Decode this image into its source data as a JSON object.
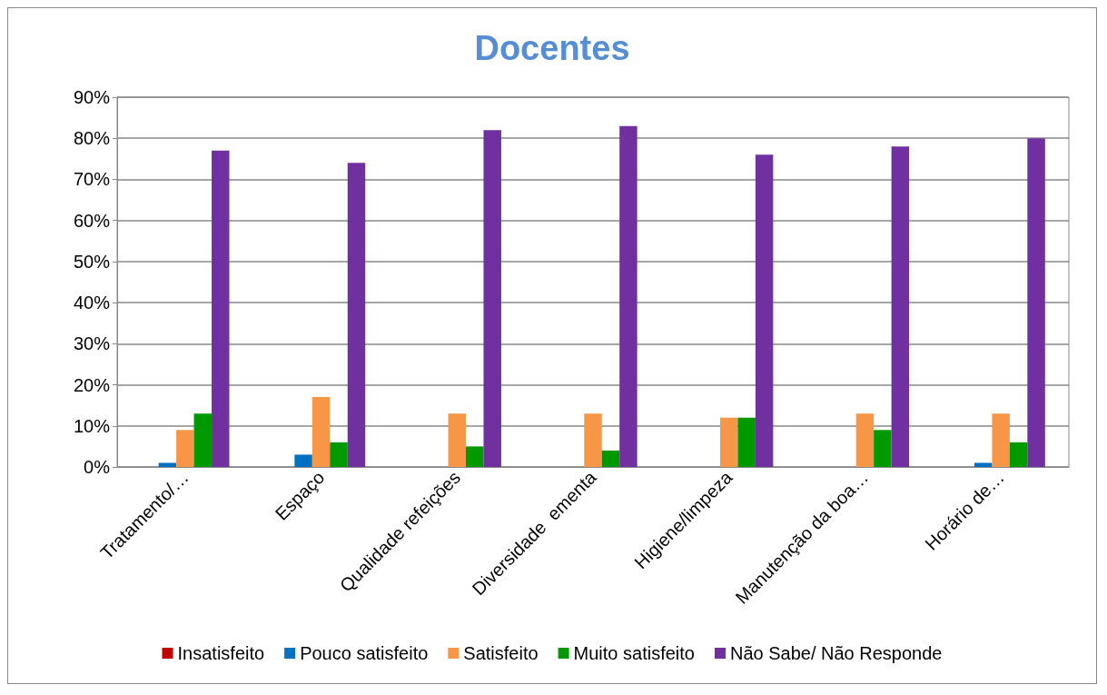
{
  "chart_data": {
    "type": "bar",
    "title": "Docentes",
    "categories": [
      "Tratamento/…",
      "Espaço",
      "Qualidade refeições",
      "Diversidade  ementa",
      "Higiene/limpeza",
      "Manutenção da boa…",
      "Horário de…"
    ],
    "series": [
      {
        "name": "Insatisfeito",
        "color": "#c00000",
        "values": [
          0,
          0,
          0,
          0,
          0,
          0,
          0
        ]
      },
      {
        "name": "Pouco satisfeito",
        "color": "#0070c0",
        "values": [
          1,
          3,
          0,
          0,
          0,
          0,
          1
        ]
      },
      {
        "name": "Satisfeito",
        "color": "#f79646",
        "values": [
          9,
          17,
          13,
          13,
          12,
          13,
          13
        ]
      },
      {
        "name": "Muito satisfeito",
        "color": "#009900",
        "values": [
          13,
          6,
          5,
          4,
          12,
          9,
          6
        ]
      },
      {
        "name": "Não Sabe/ Não Responde",
        "color": "#7030a0",
        "values": [
          77,
          74,
          82,
          83,
          76,
          78,
          80
        ]
      }
    ],
    "ylim": [
      0,
      90
    ],
    "yticks": [
      {
        "value": 0,
        "label": "0%"
      },
      {
        "value": 10,
        "label": "10%"
      },
      {
        "value": 20,
        "label": "20%"
      },
      {
        "value": 30,
        "label": "30%"
      },
      {
        "value": 40,
        "label": "40%"
      },
      {
        "value": 50,
        "label": "50%"
      },
      {
        "value": 60,
        "label": "60%"
      },
      {
        "value": 70,
        "label": "70%"
      },
      {
        "value": 80,
        "label": "80%"
      },
      {
        "value": 90,
        "label": "90%"
      }
    ],
    "grid": "y",
    "legend": "bottom"
  }
}
